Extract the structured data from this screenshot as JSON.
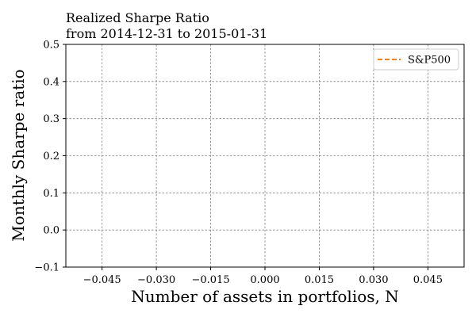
{
  "chart_data": {
    "type": "line",
    "title_lines": [
      "Realized Sharpe Ratio",
      "from 2014-12-31 to 2015-01-31"
    ],
    "xlabel": "Number of assets in portfolios, N",
    "ylabel": "Monthly Sharpe ratio",
    "xlim": [
      -0.055,
      0.055
    ],
    "ylim": [
      -0.1,
      0.5
    ],
    "x_ticks": [
      -0.045,
      -0.03,
      -0.015,
      0.0,
      0.015,
      0.03,
      0.045
    ],
    "x_tick_labels": [
      "−0.045",
      "−0.030",
      "−0.015",
      "0.000",
      "0.015",
      "0.030",
      "0.045"
    ],
    "y_ticks": [
      -0.1,
      0.0,
      0.1,
      0.2,
      0.3,
      0.4,
      0.5
    ],
    "y_tick_labels": [
      "−0.1",
      "0.0",
      "0.1",
      "0.2",
      "0.3",
      "0.4",
      "0.5"
    ],
    "grid": true,
    "legend_position": "upper right",
    "series": [
      {
        "name": "S&P500",
        "color": "#ff7f0e",
        "style": "dashed",
        "x": [],
        "y": []
      }
    ]
  }
}
